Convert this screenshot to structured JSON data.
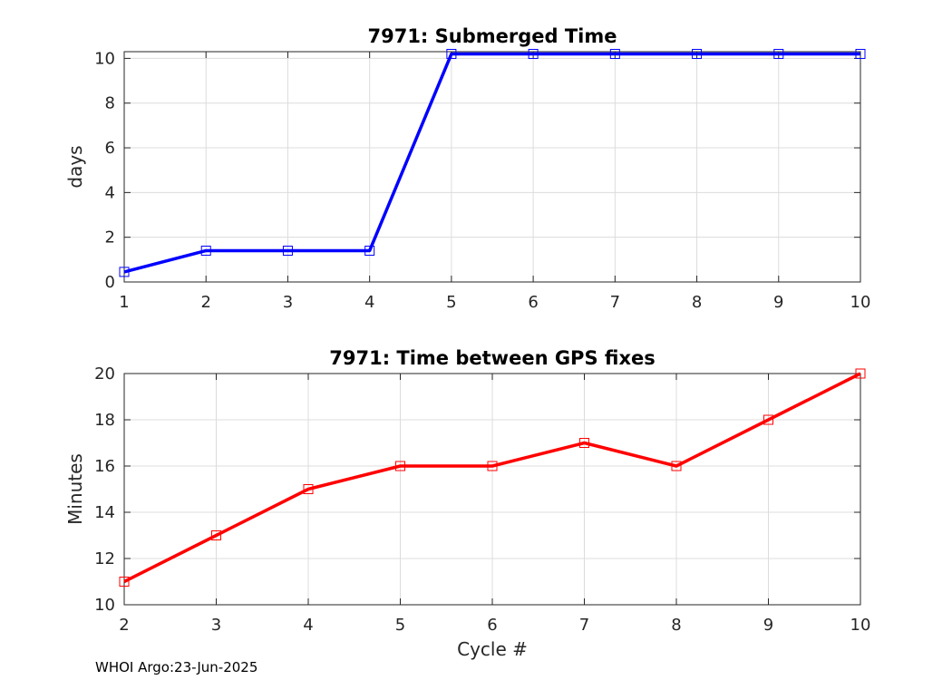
{
  "footer": "WHOI Argo:23-Jun-2025",
  "chart_data": [
    {
      "type": "line",
      "title": "7971: Submerged Time",
      "xlabel": "",
      "ylabel": "days",
      "xlim": [
        1,
        10
      ],
      "ylim": [
        0,
        10.3
      ],
      "xticks": [
        1,
        2,
        3,
        4,
        5,
        6,
        7,
        8,
        9,
        10
      ],
      "yticks": [
        0,
        2,
        4,
        6,
        8,
        10
      ],
      "grid": true,
      "marker": "square",
      "color": "#0000ff",
      "series": [
        {
          "x": [
            1,
            2,
            3,
            4,
            5,
            6,
            7,
            8,
            9,
            10
          ],
          "y": [
            0.45,
            1.4,
            1.4,
            1.4,
            10.2,
            10.2,
            10.2,
            10.2,
            10.2,
            10.2
          ]
        }
      ]
    },
    {
      "type": "line",
      "title": "7971: Time between GPS fixes",
      "xlabel": "Cycle #",
      "ylabel": "Minutes",
      "xlim": [
        2,
        10
      ],
      "ylim": [
        10,
        20
      ],
      "xticks": [
        2,
        3,
        4,
        5,
        6,
        7,
        8,
        9,
        10
      ],
      "yticks": [
        10,
        12,
        14,
        16,
        18,
        20
      ],
      "grid": true,
      "marker": "square",
      "color": "#ff0000",
      "series": [
        {
          "x": [
            2,
            3,
            4,
            5,
            6,
            7,
            8,
            9,
            10
          ],
          "y": [
            11,
            13,
            15,
            16,
            16,
            17,
            16,
            18,
            20
          ]
        }
      ]
    }
  ]
}
